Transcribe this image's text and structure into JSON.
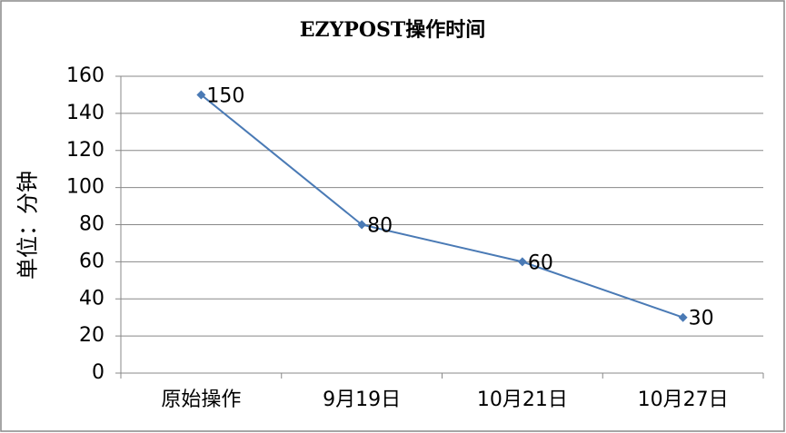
{
  "chart_data": {
    "type": "line",
    "title": "EZYPOST操作时间",
    "y_label": "单位：分钟",
    "categories": [
      "原始操作",
      "9月19日",
      "10月21日",
      "10月27日"
    ],
    "values": [
      150,
      80,
      60,
      30
    ],
    "color": "#4a7ab5",
    "ylim": [
      0,
      160
    ],
    "yticks": [
      0,
      20,
      40,
      60,
      80,
      100,
      120,
      140,
      160
    ],
    "grid": true
  }
}
